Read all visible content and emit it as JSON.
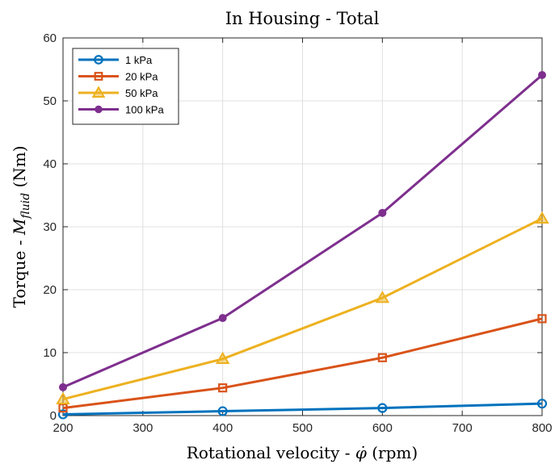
{
  "chart_data": {
    "type": "line",
    "title": "In Housing - Total",
    "xlabel": "Rotational velocity - φ̇ (rpm)",
    "ylabel": "Torque - M_fluid (Nm)",
    "xlabel_parts": {
      "pre": "Rotational velocity - ",
      "sym": "φ̇",
      "post": " (rpm)"
    },
    "ylabel_parts": {
      "pre": "Torque - ",
      "sym": "M",
      "sub": "fluid",
      "post": " (Nm)"
    },
    "xlim": [
      200,
      800
    ],
    "ylim": [
      0,
      60
    ],
    "xticks": [
      200,
      300,
      400,
      500,
      600,
      700,
      800
    ],
    "yticks": [
      0,
      10,
      20,
      30,
      40,
      50,
      60
    ],
    "grid": true,
    "legend_position": "top-left",
    "x": [
      200,
      400,
      600,
      800
    ],
    "series": [
      {
        "name": "1 kPa",
        "values": [
          0.2,
          0.7,
          1.2,
          1.9
        ],
        "color": "#0072BD",
        "marker": "circle"
      },
      {
        "name": "20 kPa",
        "values": [
          1.2,
          4.4,
          9.2,
          15.4
        ],
        "color": "#D95319",
        "marker": "square"
      },
      {
        "name": "50 kPa",
        "values": [
          2.6,
          9.0,
          18.7,
          31.3
        ],
        "color": "#EDB120",
        "marker": "triangle"
      },
      {
        "name": "100 kPa",
        "values": [
          4.5,
          15.5,
          32.2,
          54.1
        ],
        "color": "#7E2F8E",
        "marker": "dot"
      }
    ]
  }
}
